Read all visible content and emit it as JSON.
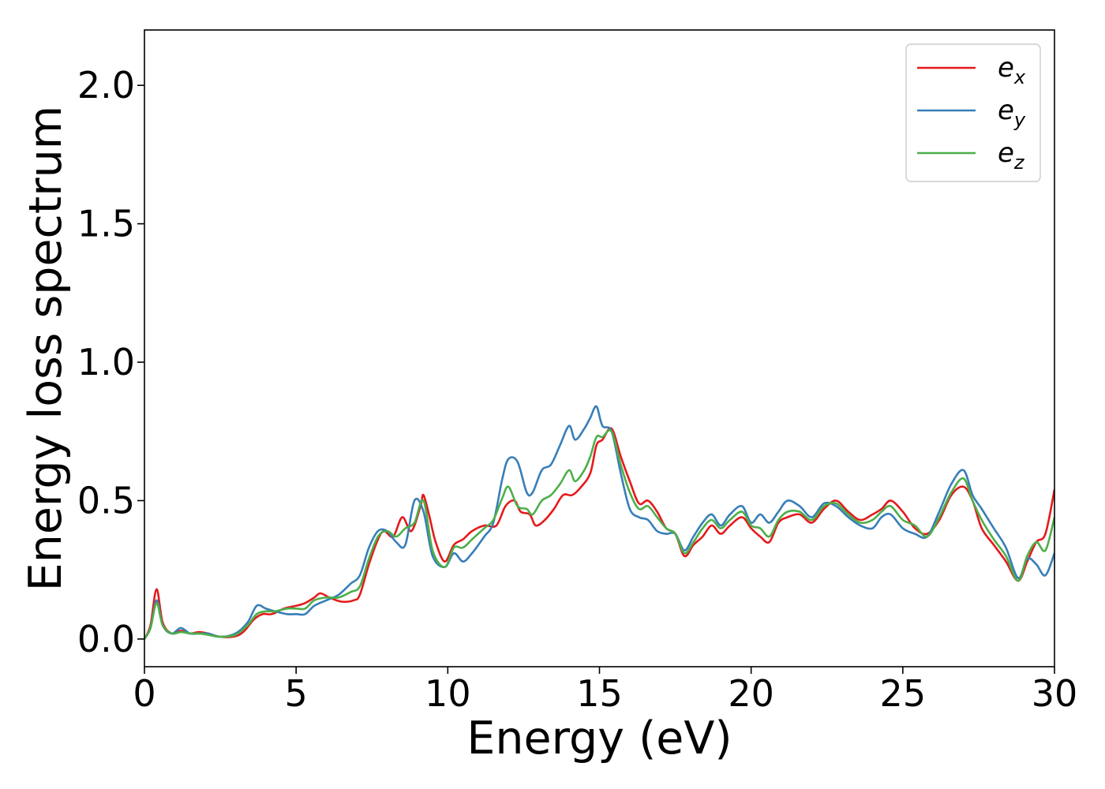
{
  "chart_data": {
    "type": "line",
    "xlabel": "Energy (eV)",
    "ylabel": "Energy loss spectrum",
    "xlim": [
      0,
      30
    ],
    "ylim": [
      -0.1,
      2.2
    ],
    "xticks": [
      "0",
      "5",
      "10",
      "15",
      "20",
      "25",
      "30"
    ],
    "xtick_values": [
      0,
      5,
      10,
      15,
      20,
      25,
      30
    ],
    "yticks": [
      "0.0",
      "0.5",
      "1.0",
      "1.5",
      "2.0"
    ],
    "ytick_values": [
      0.0,
      0.5,
      1.0,
      1.5,
      2.0
    ],
    "grid": false,
    "legend_position": "top-right",
    "series": [
      {
        "name": "e",
        "subscript": "x",
        "color": "#e41a1c",
        "points": [
          [
            0,
            0.0
          ],
          [
            0.2,
            0.05
          ],
          [
            0.4,
            0.18
          ],
          [
            0.6,
            0.06
          ],
          [
            0.9,
            0.02
          ],
          [
            1.2,
            0.03
          ],
          [
            1.5,
            0.02
          ],
          [
            1.8,
            0.025
          ],
          [
            2.1,
            0.02
          ],
          [
            2.5,
            0.008
          ],
          [
            3.0,
            0.01
          ],
          [
            3.3,
            0.03
          ],
          [
            3.6,
            0.07
          ],
          [
            3.9,
            0.09
          ],
          [
            4.2,
            0.09
          ],
          [
            4.6,
            0.11
          ],
          [
            5.0,
            0.12
          ],
          [
            5.3,
            0.13
          ],
          [
            5.6,
            0.15
          ],
          [
            5.8,
            0.165
          ],
          [
            6.1,
            0.15
          ],
          [
            6.5,
            0.135
          ],
          [
            6.9,
            0.14
          ],
          [
            7.1,
            0.16
          ],
          [
            7.4,
            0.27
          ],
          [
            7.7,
            0.36
          ],
          [
            7.9,
            0.39
          ],
          [
            8.2,
            0.37
          ],
          [
            8.5,
            0.44
          ],
          [
            8.8,
            0.39
          ],
          [
            9.1,
            0.48
          ],
          [
            9.2,
            0.52
          ],
          [
            9.4,
            0.44
          ],
          [
            9.6,
            0.35
          ],
          [
            9.9,
            0.28
          ],
          [
            10.2,
            0.34
          ],
          [
            10.5,
            0.36
          ],
          [
            10.8,
            0.39
          ],
          [
            11.2,
            0.41
          ],
          [
            11.6,
            0.41
          ],
          [
            11.9,
            0.48
          ],
          [
            12.2,
            0.5
          ],
          [
            12.4,
            0.46
          ],
          [
            12.7,
            0.45
          ],
          [
            12.9,
            0.41
          ],
          [
            13.2,
            0.43
          ],
          [
            13.5,
            0.47
          ],
          [
            13.8,
            0.52
          ],
          [
            14.1,
            0.52
          ],
          [
            14.4,
            0.55
          ],
          [
            14.7,
            0.6
          ],
          [
            14.9,
            0.7
          ],
          [
            15.1,
            0.72
          ],
          [
            15.4,
            0.76
          ],
          [
            15.7,
            0.66
          ],
          [
            16.0,
            0.57
          ],
          [
            16.3,
            0.49
          ],
          [
            16.6,
            0.5
          ],
          [
            16.9,
            0.46
          ],
          [
            17.2,
            0.4
          ],
          [
            17.5,
            0.38
          ],
          [
            17.8,
            0.3
          ],
          [
            18.1,
            0.34
          ],
          [
            18.4,
            0.37
          ],
          [
            18.7,
            0.41
          ],
          [
            19.0,
            0.38
          ],
          [
            19.3,
            0.41
          ],
          [
            19.7,
            0.44
          ],
          [
            20.0,
            0.4
          ],
          [
            20.3,
            0.37
          ],
          [
            20.6,
            0.35
          ],
          [
            20.9,
            0.42
          ],
          [
            21.2,
            0.44
          ],
          [
            21.6,
            0.45
          ],
          [
            22.0,
            0.42
          ],
          [
            22.4,
            0.47
          ],
          [
            22.8,
            0.5
          ],
          [
            23.2,
            0.46
          ],
          [
            23.6,
            0.43
          ],
          [
            24.0,
            0.45
          ],
          [
            24.3,
            0.47
          ],
          [
            24.6,
            0.5
          ],
          [
            25.0,
            0.46
          ],
          [
            25.4,
            0.4
          ],
          [
            25.8,
            0.38
          ],
          [
            26.2,
            0.43
          ],
          [
            26.6,
            0.52
          ],
          [
            27.0,
            0.55
          ],
          [
            27.3,
            0.5
          ],
          [
            27.6,
            0.4
          ],
          [
            28.0,
            0.34
          ],
          [
            28.4,
            0.28
          ],
          [
            28.8,
            0.21
          ],
          [
            29.1,
            0.28
          ],
          [
            29.4,
            0.35
          ],
          [
            29.7,
            0.38
          ],
          [
            30.0,
            0.54
          ]
        ]
      },
      {
        "name": "e",
        "subscript": "y",
        "color": "#377eb8",
        "points": [
          [
            0,
            0.0
          ],
          [
            0.2,
            0.04
          ],
          [
            0.4,
            0.14
          ],
          [
            0.6,
            0.05
          ],
          [
            0.9,
            0.02
          ],
          [
            1.2,
            0.04
          ],
          [
            1.5,
            0.02
          ],
          [
            1.8,
            0.02
          ],
          [
            2.1,
            0.02
          ],
          [
            2.5,
            0.008
          ],
          [
            3.0,
            0.02
          ],
          [
            3.4,
            0.06
          ],
          [
            3.7,
            0.12
          ],
          [
            4.0,
            0.11
          ],
          [
            4.3,
            0.1
          ],
          [
            4.7,
            0.09
          ],
          [
            5.0,
            0.09
          ],
          [
            5.3,
            0.09
          ],
          [
            5.6,
            0.12
          ],
          [
            6.0,
            0.14
          ],
          [
            6.4,
            0.16
          ],
          [
            6.8,
            0.2
          ],
          [
            7.1,
            0.23
          ],
          [
            7.4,
            0.33
          ],
          [
            7.7,
            0.39
          ],
          [
            8.0,
            0.39
          ],
          [
            8.3,
            0.35
          ],
          [
            8.6,
            0.34
          ],
          [
            8.9,
            0.5
          ],
          [
            9.2,
            0.46
          ],
          [
            9.5,
            0.3
          ],
          [
            9.9,
            0.26
          ],
          [
            10.2,
            0.31
          ],
          [
            10.5,
            0.28
          ],
          [
            10.8,
            0.31
          ],
          [
            11.2,
            0.37
          ],
          [
            11.5,
            0.42
          ],
          [
            11.8,
            0.58
          ],
          [
            12.0,
            0.65
          ],
          [
            12.3,
            0.64
          ],
          [
            12.6,
            0.53
          ],
          [
            12.8,
            0.53
          ],
          [
            13.1,
            0.61
          ],
          [
            13.4,
            0.63
          ],
          [
            13.7,
            0.7
          ],
          [
            14.0,
            0.77
          ],
          [
            14.2,
            0.72
          ],
          [
            14.5,
            0.76
          ],
          [
            14.7,
            0.8
          ],
          [
            14.9,
            0.84
          ],
          [
            15.1,
            0.77
          ],
          [
            15.4,
            0.75
          ],
          [
            15.7,
            0.6
          ],
          [
            16.0,
            0.47
          ],
          [
            16.3,
            0.44
          ],
          [
            16.6,
            0.43
          ],
          [
            16.9,
            0.39
          ],
          [
            17.2,
            0.38
          ],
          [
            17.5,
            0.38
          ],
          [
            17.8,
            0.32
          ],
          [
            18.1,
            0.37
          ],
          [
            18.4,
            0.42
          ],
          [
            18.7,
            0.45
          ],
          [
            19.0,
            0.41
          ],
          [
            19.3,
            0.45
          ],
          [
            19.7,
            0.48
          ],
          [
            20.0,
            0.42
          ],
          [
            20.3,
            0.45
          ],
          [
            20.6,
            0.42
          ],
          [
            20.9,
            0.46
          ],
          [
            21.2,
            0.5
          ],
          [
            21.6,
            0.48
          ],
          [
            22.0,
            0.44
          ],
          [
            22.4,
            0.49
          ],
          [
            22.8,
            0.48
          ],
          [
            23.2,
            0.44
          ],
          [
            23.6,
            0.41
          ],
          [
            24.0,
            0.4
          ],
          [
            24.3,
            0.44
          ],
          [
            24.6,
            0.45
          ],
          [
            25.0,
            0.4
          ],
          [
            25.4,
            0.38
          ],
          [
            25.8,
            0.37
          ],
          [
            26.2,
            0.46
          ],
          [
            26.6,
            0.56
          ],
          [
            27.0,
            0.61
          ],
          [
            27.3,
            0.52
          ],
          [
            27.6,
            0.47
          ],
          [
            28.0,
            0.4
          ],
          [
            28.4,
            0.33
          ],
          [
            28.8,
            0.22
          ],
          [
            29.1,
            0.29
          ],
          [
            29.4,
            0.27
          ],
          [
            29.7,
            0.23
          ],
          [
            30.0,
            0.31
          ]
        ]
      },
      {
        "name": "e",
        "subscript": "z",
        "color": "#4daf4a",
        "points": [
          [
            0,
            0.0
          ],
          [
            0.2,
            0.04
          ],
          [
            0.4,
            0.13
          ],
          [
            0.6,
            0.05
          ],
          [
            0.9,
            0.02
          ],
          [
            1.2,
            0.025
          ],
          [
            1.5,
            0.02
          ],
          [
            1.8,
            0.02
          ],
          [
            2.1,
            0.015
          ],
          [
            2.5,
            0.008
          ],
          [
            3.0,
            0.015
          ],
          [
            3.4,
            0.05
          ],
          [
            3.7,
            0.09
          ],
          [
            4.0,
            0.1
          ],
          [
            4.3,
            0.1
          ],
          [
            4.7,
            0.11
          ],
          [
            5.0,
            0.11
          ],
          [
            5.3,
            0.11
          ],
          [
            5.6,
            0.14
          ],
          [
            6.0,
            0.15
          ],
          [
            6.4,
            0.15
          ],
          [
            6.8,
            0.17
          ],
          [
            7.1,
            0.19
          ],
          [
            7.4,
            0.29
          ],
          [
            7.7,
            0.37
          ],
          [
            8.0,
            0.39
          ],
          [
            8.3,
            0.37
          ],
          [
            8.6,
            0.4
          ],
          [
            8.9,
            0.42
          ],
          [
            9.2,
            0.5
          ],
          [
            9.5,
            0.32
          ],
          [
            9.9,
            0.26
          ],
          [
            10.2,
            0.33
          ],
          [
            10.5,
            0.33
          ],
          [
            10.8,
            0.36
          ],
          [
            11.2,
            0.4
          ],
          [
            11.5,
            0.43
          ],
          [
            11.8,
            0.51
          ],
          [
            12.0,
            0.55
          ],
          [
            12.3,
            0.48
          ],
          [
            12.6,
            0.47
          ],
          [
            12.8,
            0.45
          ],
          [
            13.1,
            0.5
          ],
          [
            13.4,
            0.52
          ],
          [
            13.7,
            0.56
          ],
          [
            14.0,
            0.61
          ],
          [
            14.2,
            0.57
          ],
          [
            14.5,
            0.61
          ],
          [
            14.7,
            0.66
          ],
          [
            14.9,
            0.73
          ],
          [
            15.1,
            0.73
          ],
          [
            15.4,
            0.75
          ],
          [
            15.7,
            0.63
          ],
          [
            16.0,
            0.53
          ],
          [
            16.3,
            0.47
          ],
          [
            16.6,
            0.48
          ],
          [
            16.9,
            0.44
          ],
          [
            17.2,
            0.4
          ],
          [
            17.5,
            0.38
          ],
          [
            17.8,
            0.31
          ],
          [
            18.1,
            0.35
          ],
          [
            18.4,
            0.4
          ],
          [
            18.7,
            0.43
          ],
          [
            19.0,
            0.4
          ],
          [
            19.3,
            0.43
          ],
          [
            19.7,
            0.46
          ],
          [
            20.0,
            0.41
          ],
          [
            20.3,
            0.4
          ],
          [
            20.6,
            0.37
          ],
          [
            20.9,
            0.43
          ],
          [
            21.2,
            0.46
          ],
          [
            21.6,
            0.46
          ],
          [
            22.0,
            0.43
          ],
          [
            22.4,
            0.48
          ],
          [
            22.8,
            0.49
          ],
          [
            23.2,
            0.45
          ],
          [
            23.6,
            0.42
          ],
          [
            24.0,
            0.43
          ],
          [
            24.3,
            0.46
          ],
          [
            24.6,
            0.48
          ],
          [
            25.0,
            0.43
          ],
          [
            25.4,
            0.41
          ],
          [
            25.8,
            0.37
          ],
          [
            26.2,
            0.44
          ],
          [
            26.6,
            0.53
          ],
          [
            27.0,
            0.58
          ],
          [
            27.3,
            0.5
          ],
          [
            27.6,
            0.43
          ],
          [
            28.0,
            0.36
          ],
          [
            28.4,
            0.3
          ],
          [
            28.8,
            0.21
          ],
          [
            29.1,
            0.3
          ],
          [
            29.4,
            0.35
          ],
          [
            29.7,
            0.32
          ],
          [
            30.0,
            0.44
          ]
        ]
      }
    ]
  }
}
